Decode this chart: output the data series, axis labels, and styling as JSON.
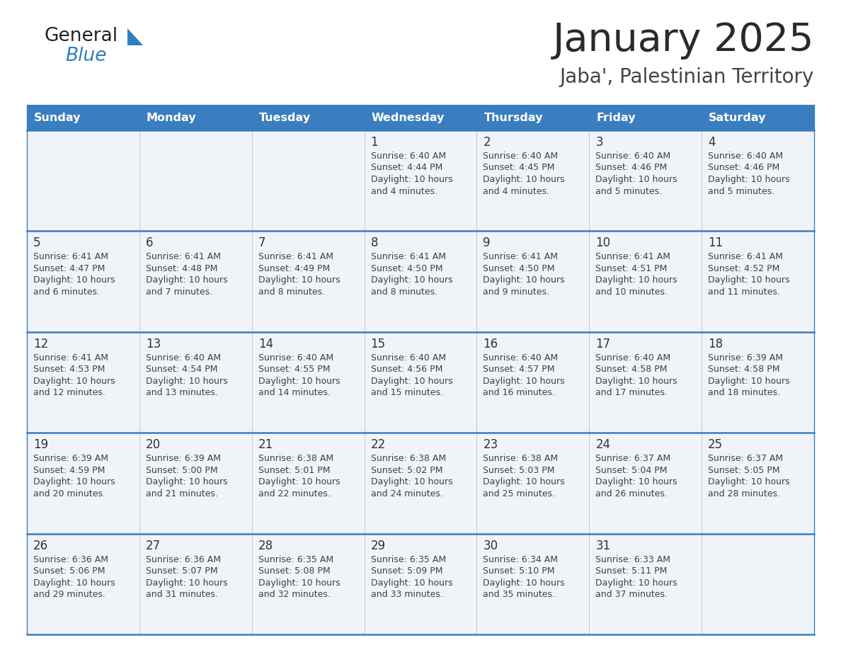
{
  "title": "January 2025",
  "subtitle": "Jaba', Palestinian Territory",
  "days_of_week": [
    "Sunday",
    "Monday",
    "Tuesday",
    "Wednesday",
    "Thursday",
    "Friday",
    "Saturday"
  ],
  "header_bg": "#3a7ebf",
  "header_text_color": "#ffffff",
  "cell_bg_light": "#f0f4f8",
  "cell_bg_white": "#ffffff",
  "cell_text_color": "#404040",
  "day_number_color": "#333333",
  "grid_line_color": "#3a7ebf",
  "row_sep_color": "#c0c0c0",
  "title_color": "#2a2a2a",
  "subtitle_color": "#444444",
  "logo_general_color": "#222222",
  "logo_blue_color": "#2e7fbf",
  "calendar_data": [
    [
      null,
      null,
      null,
      {
        "day": 1,
        "sunrise": "6:40 AM",
        "sunset": "4:44 PM",
        "daylight_hours": 10,
        "daylight_min": 4
      },
      {
        "day": 2,
        "sunrise": "6:40 AM",
        "sunset": "4:45 PM",
        "daylight_hours": 10,
        "daylight_min": 4
      },
      {
        "day": 3,
        "sunrise": "6:40 AM",
        "sunset": "4:46 PM",
        "daylight_hours": 10,
        "daylight_min": 5
      },
      {
        "day": 4,
        "sunrise": "6:40 AM",
        "sunset": "4:46 PM",
        "daylight_hours": 10,
        "daylight_min": 5
      }
    ],
    [
      {
        "day": 5,
        "sunrise": "6:41 AM",
        "sunset": "4:47 PM",
        "daylight_hours": 10,
        "daylight_min": 6
      },
      {
        "day": 6,
        "sunrise": "6:41 AM",
        "sunset": "4:48 PM",
        "daylight_hours": 10,
        "daylight_min": 7
      },
      {
        "day": 7,
        "sunrise": "6:41 AM",
        "sunset": "4:49 PM",
        "daylight_hours": 10,
        "daylight_min": 8
      },
      {
        "day": 8,
        "sunrise": "6:41 AM",
        "sunset": "4:50 PM",
        "daylight_hours": 10,
        "daylight_min": 8
      },
      {
        "day": 9,
        "sunrise": "6:41 AM",
        "sunset": "4:50 PM",
        "daylight_hours": 10,
        "daylight_min": 9
      },
      {
        "day": 10,
        "sunrise": "6:41 AM",
        "sunset": "4:51 PM",
        "daylight_hours": 10,
        "daylight_min": 10
      },
      {
        "day": 11,
        "sunrise": "6:41 AM",
        "sunset": "4:52 PM",
        "daylight_hours": 10,
        "daylight_min": 11
      }
    ],
    [
      {
        "day": 12,
        "sunrise": "6:41 AM",
        "sunset": "4:53 PM",
        "daylight_hours": 10,
        "daylight_min": 12
      },
      {
        "day": 13,
        "sunrise": "6:40 AM",
        "sunset": "4:54 PM",
        "daylight_hours": 10,
        "daylight_min": 13
      },
      {
        "day": 14,
        "sunrise": "6:40 AM",
        "sunset": "4:55 PM",
        "daylight_hours": 10,
        "daylight_min": 14
      },
      {
        "day": 15,
        "sunrise": "6:40 AM",
        "sunset": "4:56 PM",
        "daylight_hours": 10,
        "daylight_min": 15
      },
      {
        "day": 16,
        "sunrise": "6:40 AM",
        "sunset": "4:57 PM",
        "daylight_hours": 10,
        "daylight_min": 16
      },
      {
        "day": 17,
        "sunrise": "6:40 AM",
        "sunset": "4:58 PM",
        "daylight_hours": 10,
        "daylight_min": 17
      },
      {
        "day": 18,
        "sunrise": "6:39 AM",
        "sunset": "4:58 PM",
        "daylight_hours": 10,
        "daylight_min": 18
      }
    ],
    [
      {
        "day": 19,
        "sunrise": "6:39 AM",
        "sunset": "4:59 PM",
        "daylight_hours": 10,
        "daylight_min": 20
      },
      {
        "day": 20,
        "sunrise": "6:39 AM",
        "sunset": "5:00 PM",
        "daylight_hours": 10,
        "daylight_min": 21
      },
      {
        "day": 21,
        "sunrise": "6:38 AM",
        "sunset": "5:01 PM",
        "daylight_hours": 10,
        "daylight_min": 22
      },
      {
        "day": 22,
        "sunrise": "6:38 AM",
        "sunset": "5:02 PM",
        "daylight_hours": 10,
        "daylight_min": 24
      },
      {
        "day": 23,
        "sunrise": "6:38 AM",
        "sunset": "5:03 PM",
        "daylight_hours": 10,
        "daylight_min": 25
      },
      {
        "day": 24,
        "sunrise": "6:37 AM",
        "sunset": "5:04 PM",
        "daylight_hours": 10,
        "daylight_min": 26
      },
      {
        "day": 25,
        "sunrise": "6:37 AM",
        "sunset": "5:05 PM",
        "daylight_hours": 10,
        "daylight_min": 28
      }
    ],
    [
      {
        "day": 26,
        "sunrise": "6:36 AM",
        "sunset": "5:06 PM",
        "daylight_hours": 10,
        "daylight_min": 29
      },
      {
        "day": 27,
        "sunrise": "6:36 AM",
        "sunset": "5:07 PM",
        "daylight_hours": 10,
        "daylight_min": 31
      },
      {
        "day": 28,
        "sunrise": "6:35 AM",
        "sunset": "5:08 PM",
        "daylight_hours": 10,
        "daylight_min": 32
      },
      {
        "day": 29,
        "sunrise": "6:35 AM",
        "sunset": "5:09 PM",
        "daylight_hours": 10,
        "daylight_min": 33
      },
      {
        "day": 30,
        "sunrise": "6:34 AM",
        "sunset": "5:10 PM",
        "daylight_hours": 10,
        "daylight_min": 35
      },
      {
        "day": 31,
        "sunrise": "6:33 AM",
        "sunset": "5:11 PM",
        "daylight_hours": 10,
        "daylight_min": 37
      },
      null
    ]
  ]
}
